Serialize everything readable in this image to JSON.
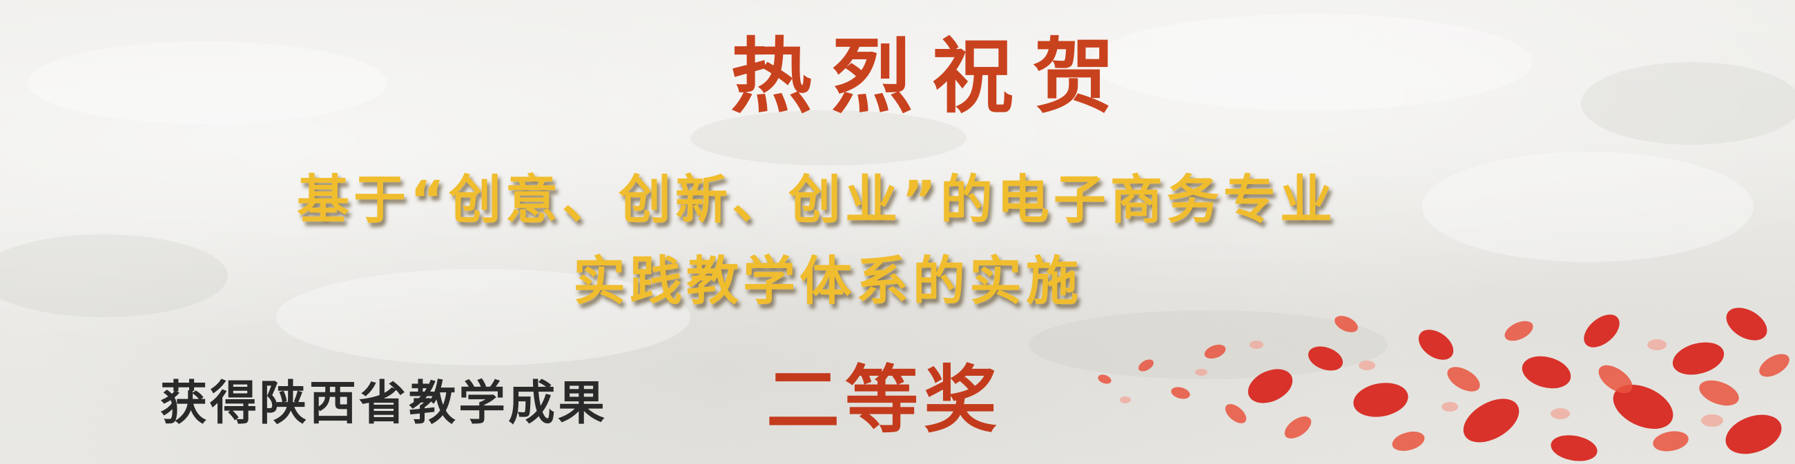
{
  "banner": {
    "headline": "热烈祝贺",
    "subtitle_line_1": "基于“创意、创新、创业”的电子商务专业",
    "subtitle_line_2": "实践教学体系的实施",
    "award_prefix": "获得陕西省教学成果",
    "award_level": "二等奖"
  },
  "colors": {
    "background": "#ecebe8",
    "headline": "#c9421e",
    "subtitle": "#f0bd2e",
    "award_prefix": "#2a2a2a",
    "award_level": "#c33b1c",
    "petal_primary": "#d8322a",
    "petal_secondary": "#e9543f"
  },
  "decoration": {
    "texture": "paper-texture",
    "flourish": "rose-petals"
  }
}
